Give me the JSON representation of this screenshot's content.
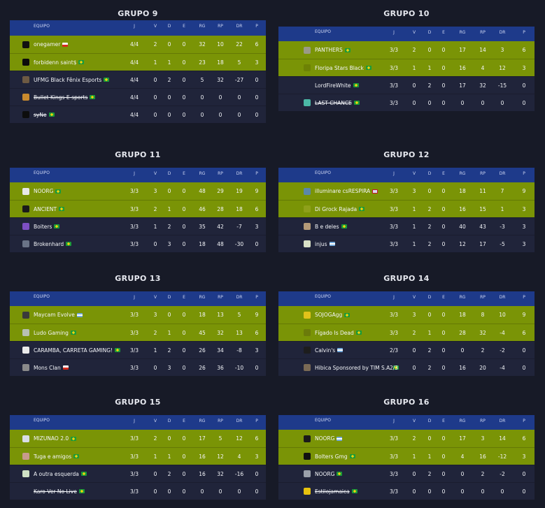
{
  "columns": [
    "EQUIPO",
    "J",
    "V",
    "D",
    "E",
    "RG",
    "RP",
    "DR",
    "P"
  ],
  "groups": [
    {
      "title": "GRUPO 9",
      "rows": [
        {
          "team": "onegamer",
          "flag": "cl",
          "j": "4/4",
          "v": "2",
          "d": "0",
          "e": "0",
          "rg": "32",
          "rp": "10",
          "dr": "22",
          "p": "6",
          "q": true,
          "logo": "#111111"
        },
        {
          "team": "forbidenn saint$",
          "flag": "br",
          "j": "4/4",
          "v": "1",
          "d": "1",
          "e": "0",
          "rg": "23",
          "rp": "18",
          "dr": "5",
          "p": "3",
          "q": true,
          "logo": "#0c0c0c"
        },
        {
          "team": "UFMG Black Fênix Esports",
          "flag": "br",
          "j": "4/4",
          "v": "0",
          "d": "2",
          "e": "0",
          "rg": "5",
          "rp": "32",
          "dr": "-27",
          "p": "0",
          "q": false,
          "logo": "#6d5a43"
        },
        {
          "team": "Bullet Kings E-sports",
          "flag": "br",
          "j": "4/4",
          "v": "0",
          "d": "0",
          "e": "0",
          "rg": "0",
          "rp": "0",
          "dr": "0",
          "p": "0",
          "q": false,
          "strike": true,
          "logo": "#c98a2e"
        },
        {
          "team": "syNe",
          "flag": "br",
          "j": "4/4",
          "v": "0",
          "d": "0",
          "e": "0",
          "rg": "0",
          "rp": "0",
          "dr": "0",
          "p": "0",
          "q": false,
          "strike": true,
          "logo": "#0d0d0d"
        }
      ]
    },
    {
      "title": "GRUPO 10",
      "rows": [
        {
          "team": "PANTHERS",
          "flag": "br",
          "j": "3/3",
          "v": "2",
          "d": "0",
          "e": "0",
          "rg": "17",
          "rp": "14",
          "dr": "3",
          "p": "6",
          "q": true,
          "logo": "#9a9a86"
        },
        {
          "team": "Floripa Stars Black",
          "flag": "br",
          "j": "3/3",
          "v": "1",
          "d": "1",
          "e": "0",
          "rg": "16",
          "rp": "4",
          "dr": "12",
          "p": "3",
          "q": true,
          "logo": "#6d8205"
        },
        {
          "team": "LordFireWhite",
          "flag": "br",
          "j": "3/3",
          "v": "0",
          "d": "2",
          "e": "0",
          "rg": "17",
          "rp": "32",
          "dr": "-15",
          "p": "0",
          "q": false,
          "logo": "#20243a"
        },
        {
          "team": "LAST CHANCE",
          "flag": "br",
          "j": "3/3",
          "v": "0",
          "d": "0",
          "e": "0",
          "rg": "0",
          "rp": "0",
          "dr": "0",
          "p": "0",
          "q": false,
          "strike": true,
          "logo": "#4bb8a6"
        }
      ]
    },
    {
      "title": "GRUPO 11",
      "rows": [
        {
          "team": "NOORG",
          "flag": "br",
          "j": "3/3",
          "v": "3",
          "d": "0",
          "e": "0",
          "rg": "48",
          "rp": "29",
          "dr": "19",
          "p": "9",
          "q": true,
          "logo": "#e8e8e8"
        },
        {
          "team": "ANCIENT",
          "flag": "br",
          "j": "3/3",
          "v": "2",
          "d": "1",
          "e": "0",
          "rg": "46",
          "rp": "28",
          "dr": "18",
          "p": "6",
          "q": true,
          "logo": "#1b1b1b"
        },
        {
          "team": "Boiters",
          "flag": "br",
          "j": "3/3",
          "v": "1",
          "d": "2",
          "e": "0",
          "rg": "35",
          "rp": "42",
          "dr": "-7",
          "p": "3",
          "q": false,
          "logo": "#7d4fc4"
        },
        {
          "team": "Brokenhard",
          "flag": "br",
          "j": "3/3",
          "v": "0",
          "d": "3",
          "e": "0",
          "rg": "18",
          "rp": "48",
          "dr": "-30",
          "p": "0",
          "q": false,
          "logo": "#6a7387"
        }
      ]
    },
    {
      "title": "GRUPO 12",
      "rows": [
        {
          "team": "illuminare csRESPIRA",
          "flag": "gb",
          "j": "3/3",
          "v": "3",
          "d": "0",
          "e": "0",
          "rg": "18",
          "rp": "11",
          "dr": "7",
          "p": "9",
          "q": true,
          "logo": "#5b88a8"
        },
        {
          "team": "Di Grock Rajada",
          "flag": "br",
          "j": "3/3",
          "v": "1",
          "d": "2",
          "e": "0",
          "rg": "16",
          "rp": "15",
          "dr": "1",
          "p": "3",
          "q": true,
          "logo": "#8ea01a"
        },
        {
          "team": "B e deles",
          "flag": "br",
          "j": "3/3",
          "v": "1",
          "d": "2",
          "e": "0",
          "rg": "40",
          "rp": "43",
          "dr": "-3",
          "p": "3",
          "q": false,
          "logo": "#b49a78"
        },
        {
          "team": "injus",
          "flag": "ar",
          "j": "3/3",
          "v": "1",
          "d": "2",
          "e": "0",
          "rg": "12",
          "rp": "17",
          "dr": "-5",
          "p": "3",
          "q": false,
          "logo": "#d8e0c6"
        }
      ]
    },
    {
      "title": "GRUPO 13",
      "rows": [
        {
          "team": "Maycam Evolve",
          "flag": "ar",
          "j": "3/3",
          "v": "3",
          "d": "0",
          "e": "0",
          "rg": "18",
          "rp": "13",
          "dr": "5",
          "p": "9",
          "q": true,
          "logo": "#3a3a3a"
        },
        {
          "team": "Ludo Gaming",
          "flag": "br",
          "j": "3/3",
          "v": "2",
          "d": "1",
          "e": "0",
          "rg": "45",
          "rp": "32",
          "dr": "13",
          "p": "6",
          "q": true,
          "logo": "#b8c0b2"
        },
        {
          "team": "CARAMBA, CARRETA GAMING!",
          "flag": "br",
          "j": "3/3",
          "v": "1",
          "d": "2",
          "e": "0",
          "rg": "26",
          "rp": "34",
          "dr": "-8",
          "p": "3",
          "q": false,
          "logo": "#e9e9e9"
        },
        {
          "team": "Mons Clan",
          "flag": "cl",
          "j": "3/3",
          "v": "0",
          "d": "3",
          "e": "0",
          "rg": "26",
          "rp": "36",
          "dr": "-10",
          "p": "0",
          "q": false,
          "logo": "#8a8a8a"
        }
      ]
    },
    {
      "title": "GRUPO 14",
      "rows": [
        {
          "team": "SOJOGAgg",
          "flag": "br",
          "j": "3/3",
          "v": "3",
          "d": "0",
          "e": "0",
          "rg": "18",
          "rp": "8",
          "dr": "10",
          "p": "9",
          "q": true,
          "logo": "#e2c21a"
        },
        {
          "team": "Fígado Is Dead",
          "flag": "br",
          "j": "3/3",
          "v": "2",
          "d": "1",
          "e": "0",
          "rg": "28",
          "rp": "32",
          "dr": "-4",
          "p": "6",
          "q": true,
          "logo": "#6b7b0a"
        },
        {
          "team": "Calvin's",
          "flag": "ar",
          "j": "2/3",
          "v": "0",
          "d": "2",
          "e": "0",
          "rg": "0",
          "rp": "2",
          "dr": "-2",
          "p": "0",
          "q": false,
          "logo": "#1d1d1d"
        },
        {
          "team": "Hibica Sponsored by TIM S.A.",
          "flag": "br",
          "j": "2/3",
          "v": "0",
          "d": "2",
          "e": "0",
          "rg": "16",
          "rp": "20",
          "dr": "-4",
          "p": "0",
          "q": false,
          "logo": "#7a6a55"
        }
      ]
    },
    {
      "title": "GRUPO 15",
      "rows": [
        {
          "team": "MIZUNAO 2.0",
          "flag": "br",
          "j": "3/3",
          "v": "2",
          "d": "0",
          "e": "0",
          "rg": "17",
          "rp": "5",
          "dr": "12",
          "p": "6",
          "q": true,
          "logo": "#d9dde6"
        },
        {
          "team": "Tuga e amigos",
          "flag": "br",
          "j": "3/3",
          "v": "1",
          "d": "1",
          "e": "0",
          "rg": "16",
          "rp": "12",
          "dr": "4",
          "p": "3",
          "q": true,
          "logo": "#c79b8a"
        },
        {
          "team": "A outra esquerda",
          "flag": "br",
          "j": "3/3",
          "v": "0",
          "d": "2",
          "e": "0",
          "rg": "16",
          "rp": "32",
          "dr": "-16",
          "p": "0",
          "q": false,
          "logo": "#cfe0c4"
        },
        {
          "team": "Karo Ver No Live",
          "flag": "br",
          "j": "3/3",
          "v": "0",
          "d": "0",
          "e": "0",
          "rg": "0",
          "rp": "0",
          "dr": "0",
          "p": "0",
          "q": false,
          "strike": true,
          "logo": "#20243a"
        }
      ]
    },
    {
      "title": "GRUPO 16",
      "rows": [
        {
          "team": "NOORG",
          "flag": "ar",
          "j": "3/3",
          "v": "2",
          "d": "0",
          "e": "0",
          "rg": "17",
          "rp": "3",
          "dr": "14",
          "p": "6",
          "q": true,
          "logo": "#1a1a1a"
        },
        {
          "team": "Bolters Gmg",
          "flag": "br",
          "j": "3/3",
          "v": "1",
          "d": "1",
          "e": "0",
          "rg": "4",
          "rp": "16",
          "dr": "-12",
          "p": "3",
          "q": true,
          "logo": "#111111"
        },
        {
          "team": "NOORG",
          "flag": "br",
          "j": "3/3",
          "v": "0",
          "d": "2",
          "e": "0",
          "rg": "0",
          "rp": "2",
          "dr": "-2",
          "p": "0",
          "q": false,
          "logo": "#9aa0aa"
        },
        {
          "team": "Estilojamaica",
          "flag": "br",
          "j": "3/3",
          "v": "0",
          "d": "0",
          "e": "0",
          "rg": "0",
          "rp": "0",
          "dr": "0",
          "p": "0",
          "q": false,
          "strike": true,
          "logo": "#e7c20e"
        }
      ]
    }
  ]
}
